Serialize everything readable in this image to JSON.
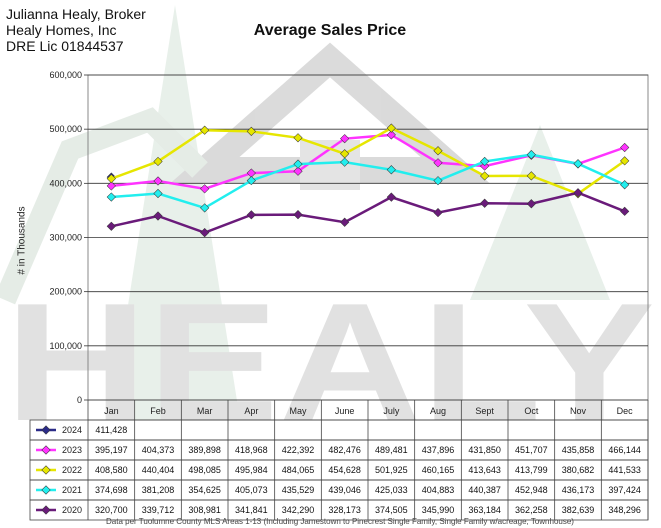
{
  "header": {
    "line1": "Julianna Healy, Broker",
    "line2": "Healy Homes, Inc",
    "line3": "DRE Lic 01844537"
  },
  "watermark": {
    "text": "HEALY"
  },
  "footer": {
    "text": "Data per Tuolumne County MLS Areas 1-13 (Including Jamestown to Pinecrest Single Family, Single Family w/acreage, Townhouse)"
  },
  "chart_data": {
    "type": "line",
    "title": "Average Sales Price",
    "xlabel": "",
    "ylabel": "# in Thousands",
    "ylim": [
      0,
      600000
    ],
    "yticks": [
      0,
      100000,
      200000,
      300000,
      400000,
      500000,
      600000
    ],
    "ytick_labels": [
      "0",
      "100,000",
      "200,000",
      "300,000",
      "400,000",
      "500,000",
      "600,000"
    ],
    "grid": true,
    "categories": [
      "Jan",
      "Feb",
      "Mar",
      "Apr",
      "May",
      "June",
      "July",
      "Aug",
      "Sept",
      "Oct",
      "Nov",
      "Dec"
    ],
    "series": [
      {
        "name": "2024",
        "color": "#2b2b88",
        "values": [
          411428,
          null,
          null,
          null,
          null,
          null,
          null,
          null,
          null,
          null,
          null,
          null
        ],
        "labels": [
          "411,428",
          "",
          "",
          "",
          "",
          "",
          "",
          "",
          "",
          "",
          "",
          ""
        ]
      },
      {
        "name": "2023",
        "color": "#ff33ff",
        "values": [
          395197,
          404373,
          389898,
          418968,
          422392,
          482476,
          489481,
          437896,
          431850,
          451707,
          435858,
          466144
        ],
        "labels": [
          "395,197",
          "404,373",
          "389,898",
          "418,968",
          "422,392",
          "482,476",
          "489,481",
          "437,896",
          "431,850",
          "451,707",
          "435,858",
          "466,144"
        ]
      },
      {
        "name": "2022",
        "color": "#e6e600",
        "values": [
          408580,
          440404,
          498085,
          495984,
          484065,
          454628,
          501925,
          460165,
          413643,
          413799,
          380682,
          441533
        ],
        "labels": [
          "408,580",
          "440,404",
          "498,085",
          "495,984",
          "484,065",
          "454,628",
          "501,925",
          "460,165",
          "413,643",
          "413,799",
          "380,682",
          "441,533"
        ]
      },
      {
        "name": "2021",
        "color": "#22eeee",
        "values": [
          374698,
          381208,
          354625,
          405073,
          435529,
          439046,
          425033,
          404883,
          440387,
          452948,
          436173,
          397424
        ],
        "labels": [
          "374,698",
          "381,208",
          "354,625",
          "405,073",
          "435,529",
          "439,046",
          "425,033",
          "404,883",
          "440,387",
          "452,948",
          "436,173",
          "397,424"
        ]
      },
      {
        "name": "2020",
        "color": "#6a1b7a",
        "values": [
          320700,
          339712,
          308981,
          341841,
          342290,
          328173,
          374505,
          345990,
          363184,
          362258,
          382639,
          348296
        ],
        "labels": [
          "320,700",
          "339,712",
          "308,981",
          "341,841",
          "342,290",
          "328,173",
          "374,505",
          "345,990",
          "363,184",
          "362,258",
          "382,639",
          "348,296"
        ]
      }
    ]
  }
}
